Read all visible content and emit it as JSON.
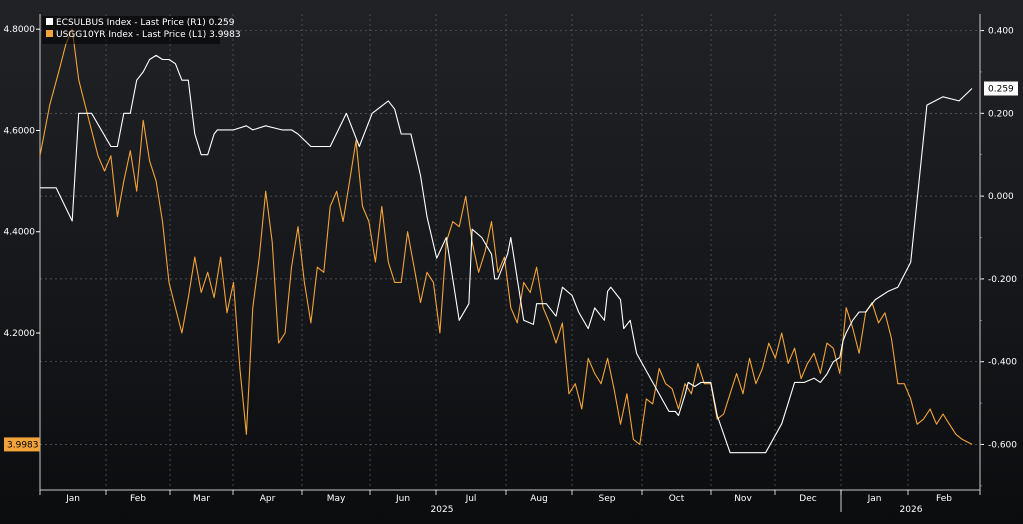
{
  "chart_data": {
    "type": "line",
    "legend": [
      {
        "label": "ECSULBUS Index - Last Price (R1) 0.259",
        "color": "#ffffff"
      },
      {
        "label": "USGG10YR Index - Last Price (L1) 3.9983",
        "color": "#f2a33a"
      }
    ],
    "left_axis": {
      "ticks": [
        "4.8000",
        "4.6000",
        "4.4000",
        "4.2000"
      ],
      "tick_values": [
        4.8,
        4.6,
        4.4,
        4.2
      ],
      "range": [
        3.89,
        4.83
      ]
    },
    "right_axis": {
      "ticks": [
        "0.400",
        "0.200",
        "0.000",
        "-0.200",
        "-0.400",
        "-0.600"
      ],
      "tick_values": [
        0.4,
        0.2,
        0.0,
        -0.2,
        -0.4,
        -0.6
      ],
      "range": [
        -0.71,
        0.44
      ]
    },
    "x_axis": {
      "months": [
        "Jan",
        "Feb",
        "Mar",
        "Apr",
        "May",
        "Jun",
        "Jul",
        "Aug",
        "Sep",
        "Oct",
        "Nov",
        "Dec",
        "Jan",
        "Feb"
      ],
      "years": [
        "2025",
        "2026"
      ]
    },
    "last_value_labels": {
      "right": "0.259",
      "left": "3.9983"
    },
    "series": [
      {
        "name": "ECSULBUS Index - Last Price (R1)",
        "axis": "right",
        "color": "#ffffff",
        "x": [
          0,
          5,
          10,
          12,
          14,
          16,
          22,
          24,
          26,
          28,
          30,
          32,
          34,
          36,
          38,
          40,
          42,
          44,
          46,
          48,
          50,
          52,
          54,
          55,
          57,
          60,
          64,
          66,
          70,
          75,
          78,
          80,
          84,
          90,
          95,
          99,
          103,
          108,
          110,
          112,
          115,
          118,
          120,
          123,
          126,
          130,
          133,
          134,
          137,
          140,
          141,
          142,
          145,
          146,
          149,
          150,
          153,
          154,
          157,
          160,
          162,
          165,
          167,
          170,
          172,
          175,
          176,
          177,
          180,
          181,
          183,
          185,
          190,
          195,
          197,
          198,
          200,
          201,
          203,
          205,
          208,
          210,
          214,
          218,
          222,
          225,
          230,
          232,
          234,
          237,
          240,
          242,
          244,
          246,
          248,
          249,
          250,
          252,
          254,
          256,
          259,
          261,
          263,
          266,
          270,
          275,
          280,
          285,
          289
        ],
        "y": [
          0.02,
          0.02,
          -0.06,
          0.2,
          0.2,
          0.2,
          0.12,
          0.12,
          0.2,
          0.2,
          0.28,
          0.3,
          0.33,
          0.34,
          0.33,
          0.33,
          0.32,
          0.28,
          0.28,
          0.15,
          0.1,
          0.1,
          0.15,
          0.16,
          0.16,
          0.16,
          0.17,
          0.16,
          0.17,
          0.16,
          0.16,
          0.15,
          0.12,
          0.12,
          0.2,
          0.12,
          0.2,
          0.23,
          0.21,
          0.15,
          0.15,
          0.05,
          -0.05,
          -0.15,
          -0.1,
          -0.3,
          -0.26,
          -0.08,
          -0.1,
          -0.14,
          -0.2,
          -0.2,
          -0.14,
          -0.1,
          -0.25,
          -0.3,
          -0.31,
          -0.26,
          -0.26,
          -0.29,
          -0.22,
          -0.24,
          -0.28,
          -0.32,
          -0.27,
          -0.3,
          -0.23,
          -0.22,
          -0.25,
          -0.32,
          -0.3,
          -0.38,
          -0.45,
          -0.52,
          -0.52,
          -0.53,
          -0.48,
          -0.45,
          -0.46,
          -0.45,
          -0.45,
          -0.53,
          -0.62,
          -0.62,
          -0.62,
          -0.62,
          -0.55,
          -0.5,
          -0.45,
          -0.45,
          -0.44,
          -0.45,
          -0.43,
          -0.4,
          -0.39,
          -0.35,
          -0.33,
          -0.3,
          -0.28,
          -0.28,
          -0.25,
          -0.24,
          -0.23,
          -0.22,
          -0.16,
          0.22,
          0.24,
          0.23,
          0.26
        ]
      },
      {
        "name": "USGG10YR Index - Last Price (L1)",
        "axis": "left",
        "color": "#f2a33a",
        "x": [
          0,
          3,
          6,
          8,
          10,
          12,
          14,
          16,
          18,
          20,
          22,
          24,
          26,
          28,
          30,
          32,
          34,
          36,
          38,
          40,
          42,
          44,
          46,
          48,
          50,
          52,
          54,
          56,
          58,
          60,
          62,
          64,
          66,
          68,
          70,
          72,
          74,
          76,
          78,
          80,
          82,
          84,
          86,
          88,
          90,
          92,
          94,
          96,
          98,
          100,
          102,
          104,
          106,
          108,
          110,
          112,
          114,
          116,
          118,
          120,
          122,
          124,
          126,
          128,
          130,
          132,
          134,
          136,
          138,
          140,
          142,
          144,
          146,
          148,
          150,
          152,
          154,
          156,
          158,
          160,
          162,
          164,
          166,
          168,
          170,
          172,
          174,
          176,
          178,
          180,
          182,
          184,
          186,
          188,
          190,
          192,
          194,
          196,
          198,
          200,
          202,
          204,
          206,
          208,
          210,
          212,
          214,
          216,
          218,
          220,
          222,
          224,
          226,
          228,
          230,
          232,
          234,
          236,
          238,
          240,
          242,
          244,
          246,
          248,
          250,
          252,
          254,
          256,
          258,
          260,
          262,
          264,
          266,
          268,
          270,
          272,
          274,
          276,
          278,
          280,
          282,
          284,
          286,
          289
        ],
        "y": [
          4.55,
          4.65,
          4.72,
          4.77,
          4.8,
          4.7,
          4.65,
          4.6,
          4.55,
          4.52,
          4.55,
          4.43,
          4.5,
          4.56,
          4.48,
          4.62,
          4.54,
          4.5,
          4.42,
          4.3,
          4.25,
          4.2,
          4.27,
          4.35,
          4.28,
          4.32,
          4.27,
          4.35,
          4.24,
          4.3,
          4.13,
          4.0,
          4.25,
          4.35,
          4.48,
          4.38,
          4.18,
          4.2,
          4.33,
          4.41,
          4.3,
          4.22,
          4.33,
          4.32,
          4.45,
          4.48,
          4.42,
          4.5,
          4.58,
          4.45,
          4.42,
          4.34,
          4.45,
          4.34,
          4.3,
          4.3,
          4.4,
          4.33,
          4.26,
          4.32,
          4.3,
          4.2,
          4.38,
          4.42,
          4.41,
          4.47,
          4.38,
          4.32,
          4.36,
          4.42,
          4.32,
          4.35,
          4.25,
          4.22,
          4.3,
          4.28,
          4.33,
          4.25,
          4.22,
          4.18,
          4.22,
          4.08,
          4.1,
          4.05,
          4.15,
          4.12,
          4.1,
          4.15,
          4.09,
          4.02,
          4.08,
          3.99,
          3.98,
          4.07,
          4.06,
          4.13,
          4.1,
          4.09,
          4.05,
          4.1,
          4.08,
          4.14,
          4.1,
          4.1,
          4.03,
          4.04,
          4.08,
          4.12,
          4.08,
          4.15,
          4.1,
          4.13,
          4.18,
          4.15,
          4.2,
          4.14,
          4.17,
          4.11,
          4.14,
          4.16,
          4.12,
          4.18,
          4.17,
          4.12,
          4.25,
          4.21,
          4.16,
          4.24,
          4.26,
          4.22,
          4.24,
          4.19,
          4.1,
          4.1,
          4.07,
          4.02,
          4.03,
          4.05,
          4.02,
          4.04,
          4.02,
          4.0,
          3.99,
          3.98
        ]
      }
    ]
  }
}
